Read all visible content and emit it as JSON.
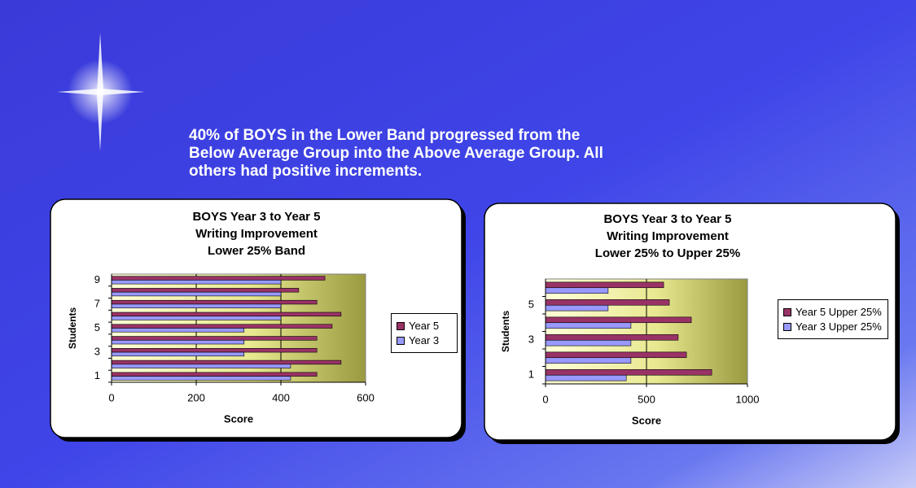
{
  "slide": {
    "heading": [
      "40% of BOYS in the Lower Band progressed from the",
      "Below Average Group into the Above Average Group. All",
      "others had positive increments."
    ]
  },
  "chart_data": [
    {
      "type": "barh",
      "title": [
        "BOYS Year 3 to Year 5",
        "Writing Improvement",
        "Lower 25% Band"
      ],
      "x_label": "Score",
      "y_label": "Students",
      "categories": [
        "1",
        null,
        "3",
        null,
        "5",
        null,
        "7",
        null,
        "9"
      ],
      "series": [
        {
          "name": "Year 5",
          "color": "#993366",
          "values": [
            485,
            542,
            485,
            485,
            521,
            542,
            485,
            442,
            504
          ]
        },
        {
          "name": "Year 3",
          "color": "#9999ff",
          "values": [
            423,
            423,
            313,
            313,
            313,
            400,
            400,
            400,
            400
          ]
        }
      ],
      "xlim": [
        0,
        600
      ],
      "xticks": [
        0,
        200,
        400,
        600
      ],
      "grid": true,
      "legend": "right"
    },
    {
      "type": "barh",
      "title": [
        "BOYS Year 3 to Year 5",
        "Writing Improvement",
        "Lower 25% to Upper 25%"
      ],
      "x_label": "Score",
      "y_label": "Students",
      "categories": [
        "1",
        null,
        "3",
        null,
        "5",
        null
      ],
      "series": [
        {
          "name": "Year 5 Upper 25%",
          "color": "#993366",
          "values": [
            823,
            698,
            657,
            722,
            613,
            585
          ]
        },
        {
          "name": "Year 3 Upper 25%",
          "color": "#9999ff",
          "values": [
            400,
            423,
            423,
            423,
            310,
            310
          ]
        }
      ],
      "xlim": [
        0,
        1000
      ],
      "xticks": [
        0,
        500,
        1000
      ],
      "grid": true,
      "legend": "right"
    }
  ]
}
